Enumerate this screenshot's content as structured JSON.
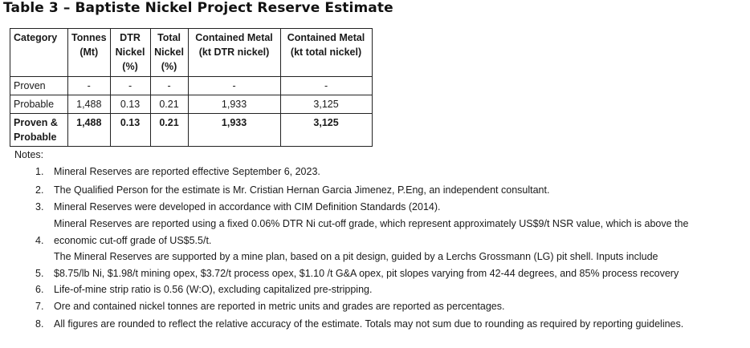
{
  "title": "Table 3 – Baptiste Nickel Project Reserve Estimate",
  "table": {
    "headers": [
      "Category",
      "Tonnes\n(Mt)",
      "DTR\nNickel\n(%)",
      "Total\nNickel\n(%)",
      "Contained Metal\n(kt DTR nickel)",
      "Contained Metal\n(kt total nickel)"
    ],
    "rows": [
      [
        "Proven",
        "-",
        "-",
        "-",
        "-",
        "-"
      ],
      [
        "Probable",
        "1,488",
        "0.13",
        "0.21",
        "1,933",
        "3,125"
      ],
      [
        "Proven &\nProbable",
        "1,488",
        "0.13",
        "0.21",
        "1,933",
        "3,125"
      ]
    ]
  },
  "notes": {
    "label": "Notes:",
    "items": [
      {
        "num": "1.",
        "lines": [
          "Mineral Reserves are reported effective September 6, 2023."
        ]
      },
      {
        "num": "2.",
        "lines": [
          "The Qualified Person for the estimate is Mr. Cristian Hernan Garcia Jimenez, P.Eng, an independent consultant."
        ]
      },
      {
        "num": "3.",
        "lines": [
          "Mineral Reserves were developed in accordance with CIM Definition Standards (2014)."
        ]
      },
      {
        "num": "4.",
        "lines": [
          "Mineral Reserves are reported using a fixed 0.06% DTR Ni cut-off grade, which represent approximately US$9/t NSR value, which is above the",
          "economic cut-off grade of US$5.5/t."
        ]
      },
      {
        "num": "5.",
        "lines": [
          "The Mineral Reserves are supported by a mine plan, based on a pit design, guided by a Lerchs Grossmann (LG) pit shell. Inputs include",
          "$8.75/lb Ni, $1.98/t mining opex, $3.72/t process opex, $1.10 /t G&A opex, pit slopes varying from 42-44 degrees, and 85% process recovery"
        ]
      },
      {
        "num": "6.",
        "lines": [
          "Life-of-mine strip ratio is 0.56 (W:O), excluding capitalized pre-stripping."
        ]
      },
      {
        "num": "7.",
        "lines": [
          "Ore and contained nickel tonnes are reported in metric units and grades are reported as percentages."
        ]
      },
      {
        "num": "8.",
        "lines": [
          "All figures are rounded to reflect the relative accuracy of the estimate. Totals may not sum due to rounding as required by reporting guidelines."
        ]
      }
    ]
  }
}
